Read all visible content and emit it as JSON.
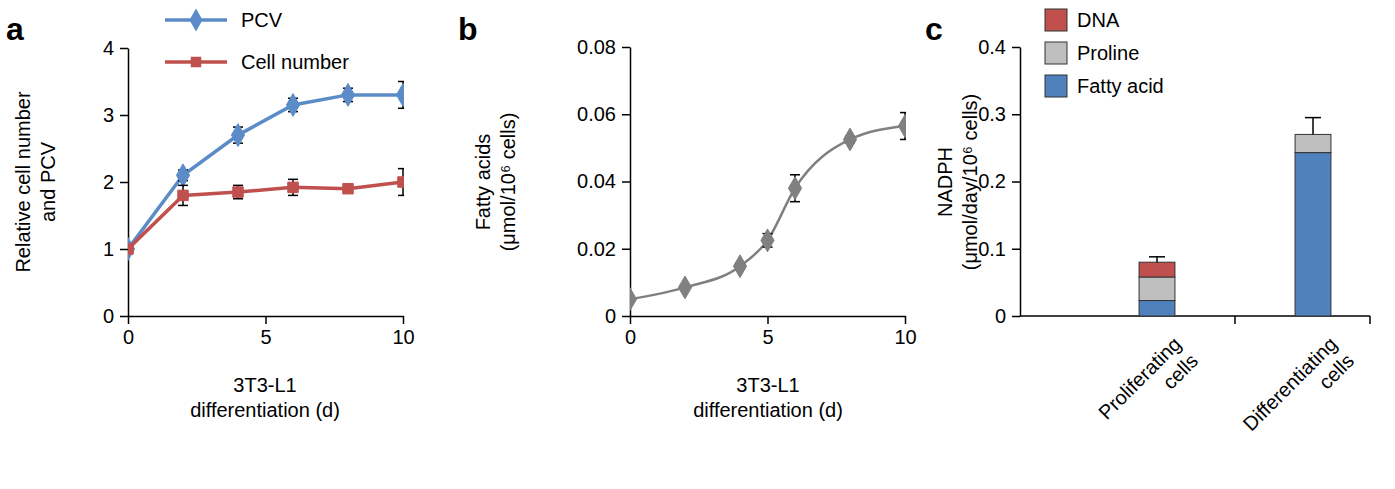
{
  "chart_data": [
    {
      "type": "line",
      "title": "a",
      "x_label": "3T3-L1\ndifferentiation (d)",
      "y_label": "Relative cell number\nand PCV",
      "x": [
        0,
        2,
        4,
        6,
        8,
        10
      ],
      "xlim": [
        0,
        10
      ],
      "xticks": [
        0,
        5,
        10
      ],
      "ylim": [
        0,
        4
      ],
      "yticks": [
        0,
        1,
        2,
        3,
        4
      ],
      "legend": "top",
      "series": [
        {
          "name": "PCV",
          "color": "#5b8cc8",
          "marker": "diamond",
          "values": [
            1,
            2.1,
            2.7,
            3.15,
            3.3,
            3.3
          ],
          "errors": [
            0.02,
            0.08,
            0.12,
            0.1,
            0.1,
            0.2
          ]
        },
        {
          "name": "Cell number",
          "color": "#c0504d",
          "marker": "square",
          "values": [
            1,
            1.8,
            1.85,
            1.92,
            1.9,
            2.0
          ],
          "errors": [
            0.02,
            0.15,
            0.1,
            0.12,
            0.05,
            0.2
          ]
        }
      ]
    },
    {
      "type": "line",
      "title": "b",
      "x_label": "3T3-L1\ndifferentiation (d)",
      "y_label": "Fatty acids\n(μmol/10⁶ cells)",
      "x": [
        0,
        2,
        4,
        5,
        6,
        8,
        10
      ],
      "xlim": [
        0,
        10
      ],
      "xticks": [
        0,
        5,
        10
      ],
      "ylim": [
        0,
        0.08
      ],
      "yticks": [
        0,
        0.02,
        0.04,
        0.06,
        0.08
      ],
      "series": [
        {
          "color": "#808080",
          "marker": "diamond",
          "line_style": "smooth",
          "values": [
            0.005,
            0.0085,
            0.0148,
            0.0225,
            0.038,
            0.0525,
            0.0565
          ],
          "errors": [
            0.0003,
            0.0005,
            0.0008,
            0.002,
            0.004,
            0.001,
            0.004
          ]
        }
      ]
    },
    {
      "type": "bar",
      "title": "c",
      "stacked": true,
      "y_label": "NADPH\n(μmol/day/10⁶ cells)",
      "categories": [
        "Proliferating\ncells",
        "Differentiating\ncells"
      ],
      "ylim": [
        0,
        0.4
      ],
      "yticks": [
        0,
        0.1,
        0.2,
        0.3,
        0.4
      ],
      "legend": "top-left",
      "series": [
        {
          "name": "Fatty acid",
          "color": "#4f81bd",
          "values": [
            0.023,
            0.243
          ]
        },
        {
          "name": "Proline",
          "color": "#bfbfbf",
          "values": [
            0.035,
            0.027
          ]
        },
        {
          "name": "DNA",
          "color": "#c0504d",
          "values": [
            0.022,
            0
          ],
          "errors": [
            0.008,
            0.025
          ]
        }
      ]
    }
  ]
}
